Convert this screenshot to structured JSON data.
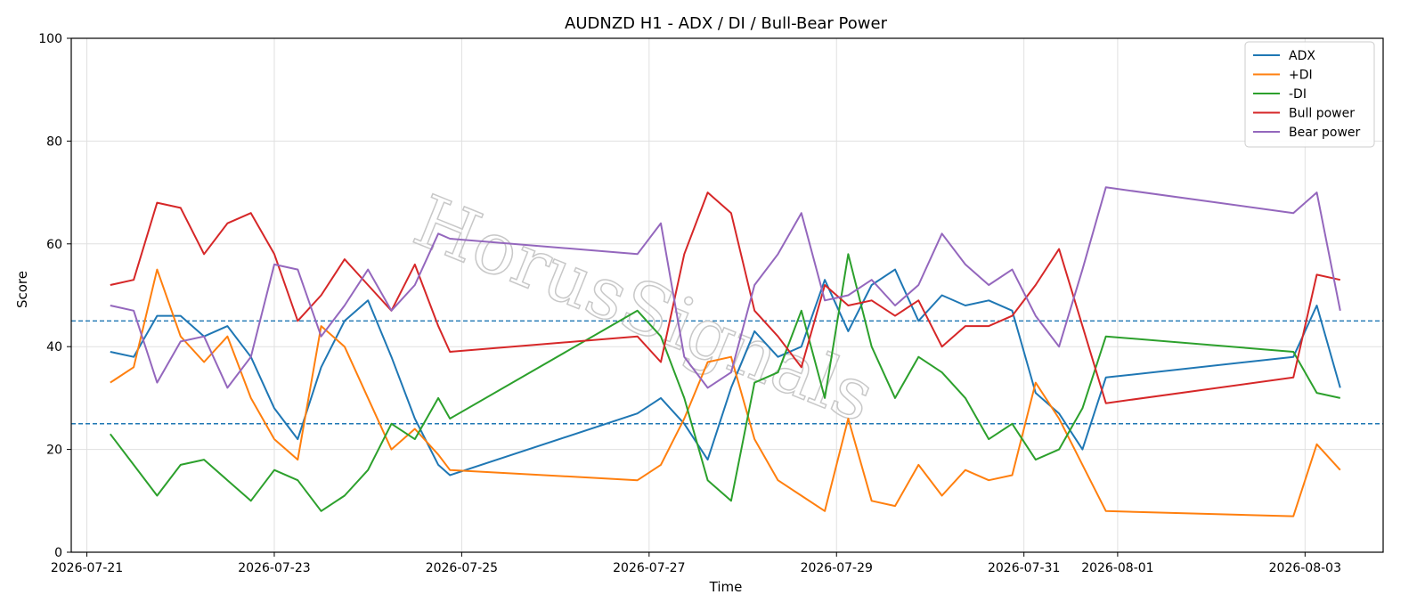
{
  "chart_data": {
    "type": "line",
    "title": "AUDNZD H1 - ADX / DI / Bull-Bear Power",
    "xlabel": "Time",
    "ylabel": "Score",
    "ylim": [
      0,
      100
    ],
    "xlim": [
      "2026-07-20T20:00",
      "2026-08-03T20:00"
    ],
    "x_tick_labels": [
      "2026-07-21",
      "2026-07-23",
      "2026-07-25",
      "2026-07-27",
      "2026-07-29",
      "2026-07-31",
      "2026-08-01",
      "2026-08-03"
    ],
    "y_tick_labels": [
      "0",
      "20",
      "40",
      "60",
      "80",
      "100"
    ],
    "grid": true,
    "legend_position": "top-right",
    "reference_lines": [
      45,
      25
    ],
    "watermark": "HorusSignals",
    "x": [
      "2026-07-21T06:00",
      "2026-07-21T12:00",
      "2026-07-21T18:00",
      "2026-07-22T00:00",
      "2026-07-22T06:00",
      "2026-07-22T12:00",
      "2026-07-22T18:00",
      "2026-07-23T00:00",
      "2026-07-23T06:00",
      "2026-07-23T12:00",
      "2026-07-23T18:00",
      "2026-07-24T00:00",
      "2026-07-24T06:00",
      "2026-07-24T12:00",
      "2026-07-24T18:00",
      "2026-07-24T21:00",
      "2026-07-26T21:00",
      "2026-07-27T03:00",
      "2026-07-27T09:00",
      "2026-07-27T15:00",
      "2026-07-27T21:00",
      "2026-07-28T03:00",
      "2026-07-28T09:00",
      "2026-07-28T15:00",
      "2026-07-28T21:00",
      "2026-07-29T03:00",
      "2026-07-29T09:00",
      "2026-07-29T15:00",
      "2026-07-29T21:00",
      "2026-07-30T03:00",
      "2026-07-30T09:00",
      "2026-07-30T15:00",
      "2026-07-30T21:00",
      "2026-07-31T03:00",
      "2026-07-31T09:00",
      "2026-07-31T15:00",
      "2026-07-31T21:00",
      "2026-08-02T21:00",
      "2026-08-03T03:00",
      "2026-08-03T09:00"
    ],
    "series": [
      {
        "name": "ADX",
        "color": "#1f77b4",
        "values": [
          39,
          38,
          46,
          46,
          42,
          44,
          38,
          28,
          22,
          36,
          45,
          49,
          38,
          26,
          17,
          15,
          27,
          30,
          25,
          18,
          32,
          43,
          38,
          40,
          53,
          43,
          52,
          55,
          45,
          50,
          48,
          49,
          47,
          31,
          27,
          20,
          34,
          38,
          48,
          32
        ]
      },
      {
        "name": "+DI",
        "color": "#ff7f0e",
        "values": [
          33,
          36,
          55,
          42,
          37,
          42,
          30,
          22,
          18,
          44,
          40,
          30,
          20,
          24,
          19,
          16,
          14,
          17,
          26,
          37,
          38,
          22,
          14,
          11,
          8,
          26,
          10,
          9,
          17,
          11,
          16,
          14,
          15,
          33,
          26,
          17,
          8,
          7,
          21,
          16
        ]
      },
      {
        "name": "-DI",
        "color": "#2ca02c",
        "values": [
          23,
          17,
          11,
          17,
          18,
          14,
          10,
          16,
          14,
          8,
          11,
          16,
          25,
          22,
          30,
          26,
          47,
          42,
          30,
          14,
          10,
          33,
          35,
          47,
          30,
          58,
          40,
          30,
          38,
          35,
          30,
          22,
          25,
          18,
          20,
          28,
          42,
          39,
          31,
          30
        ]
      },
      {
        "name": "Bull power",
        "color": "#d62728",
        "values": [
          52,
          53,
          68,
          67,
          58,
          64,
          66,
          58,
          45,
          50,
          57,
          52,
          47,
          56,
          44,
          39,
          42,
          37,
          58,
          70,
          66,
          47,
          42,
          36,
          52,
          48,
          49,
          46,
          49,
          40,
          44,
          44,
          46,
          52,
          59,
          44,
          29,
          34,
          54,
          53
        ]
      },
      {
        "name": "Bear power",
        "color": "#9467bd",
        "values": [
          48,
          47,
          33,
          41,
          42,
          32,
          38,
          56,
          55,
          42,
          48,
          55,
          47,
          52,
          62,
          61,
          58,
          64,
          38,
          32,
          35,
          52,
          58,
          66,
          49,
          50,
          53,
          48,
          52,
          62,
          56,
          52,
          55,
          46,
          40,
          55,
          71,
          66,
          70,
          47
        ]
      }
    ]
  }
}
